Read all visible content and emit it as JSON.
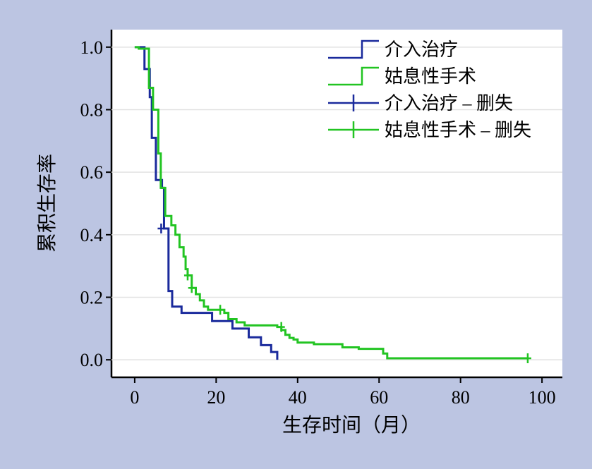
{
  "chart_data": {
    "type": "step",
    "x_label": "生存时间（月）",
    "y_label": "累积生存率",
    "xlim": [
      -5.7,
      105
    ],
    "ylim": [
      -0.056,
      1.056
    ],
    "xticks": [
      0,
      20,
      40,
      60,
      80,
      100
    ],
    "yticks": [
      {
        "value": 0,
        "label": "0.0"
      },
      {
        "value": 0.2,
        "label": "0.2"
      },
      {
        "value": 0.4,
        "label": "0.4"
      },
      {
        "value": 0.6,
        "label": "0.6"
      },
      {
        "value": 0.8,
        "label": "0.8"
      },
      {
        "value": 1,
        "label": "1.0"
      }
    ],
    "grid": true,
    "legend": "upper right",
    "series": [
      {
        "name": "介入治疗",
        "color": "#1a2a9c",
        "marker": "step",
        "x": [
          0,
          2.4,
          3.7,
          4.2,
          5.2,
          6.7,
          7.2,
          8.3,
          9.2,
          11.5,
          19,
          24,
          28,
          31,
          33.5,
          35
        ],
        "values": [
          1.0,
          0.93,
          0.84,
          0.71,
          0.575,
          0.55,
          0.42,
          0.22,
          0.17,
          0.15,
          0.124,
          0.1,
          0.072,
          0.047,
          0.025,
          0
        ]
      },
      {
        "name": "姑息性手术",
        "color": "#22c422",
        "marker": "step",
        "x": [
          0,
          1,
          3.5,
          4.5,
          5.8,
          6.4,
          7.5,
          9,
          10,
          11,
          12,
          12.5,
          13,
          14,
          15,
          16,
          17,
          18,
          22,
          23,
          25,
          27,
          35,
          36,
          37,
          38,
          39,
          40,
          44,
          51,
          55,
          61,
          62,
          96.5
        ],
        "values": [
          1.0,
          0.995,
          0.87,
          0.8,
          0.66,
          0.55,
          0.46,
          0.43,
          0.4,
          0.36,
          0.33,
          0.29,
          0.27,
          0.23,
          0.21,
          0.19,
          0.17,
          0.16,
          0.15,
          0.13,
          0.12,
          0.11,
          0.105,
          0.095,
          0.08,
          0.07,
          0.065,
          0.055,
          0.05,
          0.04,
          0.035,
          0.02,
          0.005,
          0.005
        ]
      },
      {
        "name": "介入治疗 – 删失",
        "color": "#1a2a9c",
        "marker": "cross",
        "x": [
          6.5
        ],
        "values": [
          0.42
        ]
      },
      {
        "name": "姑息性手术 – 删失",
        "color": "#22c422",
        "marker": "cross",
        "x": [
          13,
          14,
          21,
          36,
          96.5
        ],
        "values": [
          0.27,
          0.23,
          0.16,
          0.105,
          0.005
        ]
      }
    ]
  }
}
